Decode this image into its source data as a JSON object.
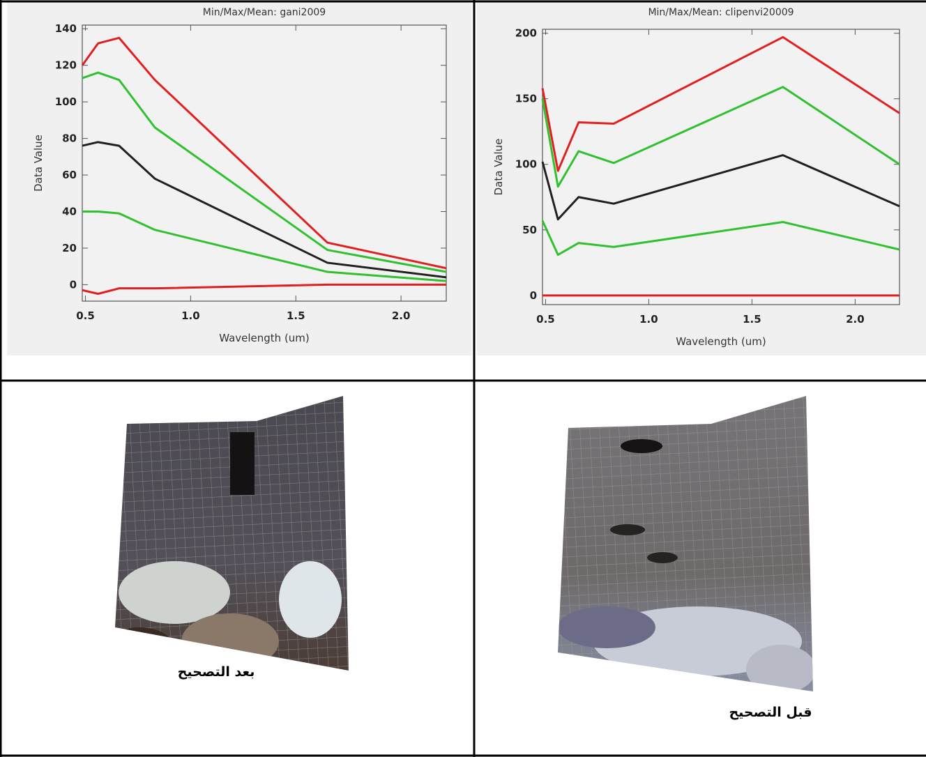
{
  "chart_data": [
    {
      "type": "line",
      "title": "Min/Max/Mean: gani2009",
      "xlabel": "Wavelength (um)",
      "ylabel": "Data Value",
      "x": [
        0.485,
        0.56,
        0.66,
        0.83,
        1.65,
        2.215
      ],
      "xlim": [
        0.485,
        2.215
      ],
      "xticks": [
        0.5,
        {
          "value": 1,
          "label": "1.0"
        },
        1.5,
        {
          "value": 2,
          "label": "2.0"
        }
      ],
      "ylim": [
        -9,
        142
      ],
      "yticks": [
        0,
        20,
        40,
        60,
        80,
        100,
        120,
        140
      ],
      "series": [
        {
          "color": "#e02020",
          "values": [
            120,
            132,
            135,
            112,
            23,
            9
          ]
        },
        {
          "color": "#30c030",
          "values": [
            113,
            116,
            112,
            86,
            19,
            7
          ]
        },
        {
          "color": "#202020",
          "values": [
            76,
            78,
            76,
            58,
            12,
            4
          ]
        },
        {
          "color": "#30c030",
          "values": [
            40,
            40,
            39,
            30,
            7,
            2
          ]
        },
        {
          "color": "#e02020",
          "values": [
            -3,
            -5,
            -2,
            -2,
            0,
            0
          ]
        }
      ]
    },
    {
      "type": "line",
      "title": "Min/Max/Mean: clipenvi20009",
      "xlabel": "Wavelength (um)",
      "ylabel": "Data Value",
      "x": [
        0.485,
        0.56,
        0.66,
        0.83,
        1.65,
        2.215
      ],
      "xlim": [
        0.485,
        2.215
      ],
      "xticks": [
        0.5,
        {
          "value": 1,
          "label": "1.0"
        },
        1.5,
        {
          "value": 2,
          "label": "2.0"
        }
      ],
      "ylim": [
        -7,
        203
      ],
      "yticks": [
        0,
        50,
        100,
        150,
        200
      ],
      "series": [
        {
          "color": "#e02020",
          "values": [
            158,
            95,
            132,
            131,
            197,
            139
          ]
        },
        {
          "color": "#30c030",
          "values": [
            150,
            83,
            110,
            101,
            159,
            100
          ]
        },
        {
          "color": "#202020",
          "values": [
            102,
            58,
            75,
            70,
            107,
            68
          ]
        },
        {
          "color": "#30c030",
          "values": [
            57,
            31,
            40,
            37,
            56,
            35
          ]
        },
        {
          "color": "#e02020",
          "values": [
            0,
            0,
            0,
            0,
            0,
            0
          ]
        }
      ]
    }
  ],
  "captions": [
    "بعد التصحيح",
    "قبل التصحيح"
  ]
}
